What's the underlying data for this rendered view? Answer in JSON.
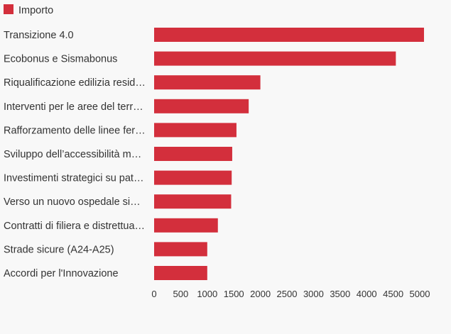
{
  "chart_data": {
    "type": "bar",
    "orientation": "horizontal",
    "legend": {
      "position": "top-left",
      "entries": [
        {
          "label": "Importo",
          "color": "#d32f3c"
        }
      ]
    },
    "categories": [
      "Transizione 4.0",
      "Ecobonus e Sismabonus",
      "Riqualificazione edilizia resid…",
      "Interventi per le aree del terr…",
      "Rafforzamento delle linee fer…",
      "Sviluppo dell’accessibilità m…",
      "Investimenti strategici su pat…",
      "Verso un nuovo ospedale si…",
      "Contratti di filiera e distrettua…",
      "Strade sicure (A24-A25)",
      "Accordi per l'Innovazione"
    ],
    "series": [
      {
        "name": "Importo",
        "color": "#d32f3c",
        "values": [
          5080,
          4550,
          2000,
          1780,
          1550,
          1470,
          1460,
          1450,
          1200,
          1000,
          1000
        ]
      }
    ],
    "x_ticks": [
      "0",
      "500",
      "1000",
      "1500",
      "2000",
      "2500",
      "3000",
      "3500",
      "4000",
      "4500",
      "5000"
    ],
    "xlim": [
      0,
      5000
    ],
    "grid": false
  }
}
